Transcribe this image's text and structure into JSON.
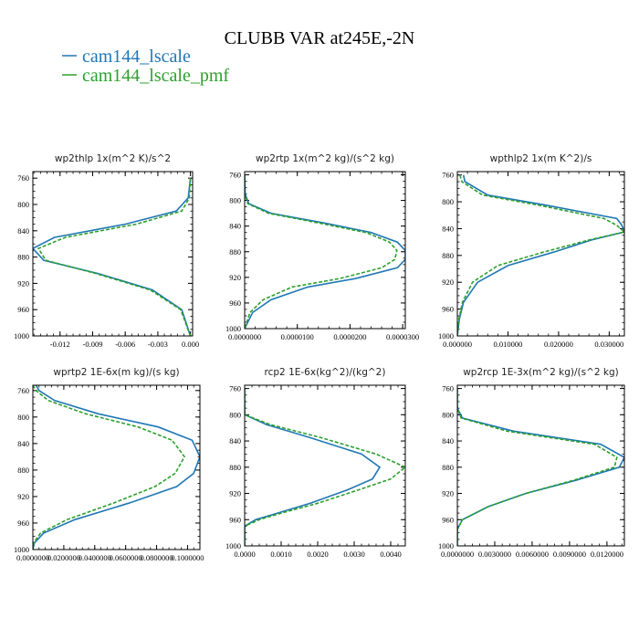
{
  "figure": {
    "title": "CLUBB VAR at245E,-2N",
    "legend": [
      {
        "label": "cam144_lscale",
        "color": "#1f77b4",
        "dash": "solid"
      },
      {
        "label": "cam144_lscale_pmf",
        "color": "#2ca02c",
        "dash": "dashed"
      }
    ]
  },
  "chart_data": [
    {
      "type": "line",
      "title": "wp2thlp   1x(m^2 K)/s^2",
      "xticks": [
        "-0.012",
        "-0.009",
        "-0.006",
        "-0.003",
        "0.000"
      ],
      "xtick_values": [
        -0.012,
        -0.009,
        -0.006,
        -0.003,
        0.0
      ],
      "xlim": [
        -0.0145,
        0.0002
      ],
      "ylim": [
        1000,
        750
      ],
      "yticks": [
        "760",
        "800",
        "840",
        "880",
        "920",
        "960",
        "1000"
      ],
      "ytick_values": [
        760,
        800,
        840,
        880,
        920,
        960,
        1000
      ],
      "series": [
        {
          "name": "cam144_lscale",
          "x": [
            0.0,
            -0.0002,
            -0.0013,
            -0.006,
            -0.0125,
            -0.0145,
            -0.0135,
            -0.0085,
            -0.0035,
            -0.0008,
            0.0
          ],
          "y": [
            760,
            790,
            810,
            830,
            850,
            867,
            885,
            905,
            930,
            960,
            1000
          ]
        },
        {
          "name": "cam144_lscale_pmf",
          "x": [
            0.0,
            -0.0001,
            -0.0008,
            -0.005,
            -0.0115,
            -0.014,
            -0.0133,
            -0.0087,
            -0.0037,
            -0.0009,
            0.0
          ],
          "y": [
            760,
            790,
            810,
            830,
            850,
            867,
            885,
            905,
            930,
            960,
            1000
          ]
        }
      ]
    },
    {
      "type": "line",
      "title": "wp2rtp   1x(m^2 kg)/(s^2 kg)",
      "xticks": [
        "0.0000000",
        "0.0000100",
        "0.0000200",
        "0.0000300"
      ],
      "xtick_values": [
        0.0,
        1e-05,
        2e-05,
        3e-05
      ],
      "xlim": [
        0.0,
        3.05e-05
      ],
      "ylim": [
        1000,
        755
      ],
      "yticks": [
        "760",
        "800",
        "840",
        "880",
        "920",
        "960",
        "1000"
      ],
      "ytick_values": [
        760,
        800,
        840,
        880,
        920,
        960,
        1000
      ],
      "series": [
        {
          "name": "cam144_lscale",
          "x": [
            0.0,
            1e-07,
            8e-07,
            5e-06,
            1.5e-05,
            2.4e-05,
            2.9e-05,
            3.05e-05,
            3.05e-05,
            2.9e-05,
            2.1e-05,
            1.2e-05,
            5e-06,
            1.5e-06,
            0.0
          ],
          "y": [
            760,
            790,
            805,
            820,
            835,
            850,
            865,
            878,
            892,
            905,
            922,
            935,
            955,
            975,
            1000
          ]
        },
        {
          "name": "cam144_lscale_pmf",
          "x": [
            0.0,
            0.0,
            6e-07,
            4.5e-06,
            1.4e-05,
            2.3e-05,
            2.75e-05,
            2.89e-05,
            2.85e-05,
            2.6e-05,
            1.8e-05,
            9e-06,
            3.5e-06,
            1e-06,
            0.0
          ],
          "y": [
            760,
            790,
            805,
            820,
            835,
            850,
            865,
            878,
            892,
            905,
            922,
            935,
            955,
            975,
            1000
          ]
        }
      ]
    },
    {
      "type": "line",
      "title": "wpthlp2   1x(m K^2)/s",
      "xticks": [
        "0.000000",
        "0.010000",
        "0.020000",
        "0.030000"
      ],
      "xtick_values": [
        0.0,
        0.01,
        0.02,
        0.03
      ],
      "xlim": [
        0.0,
        0.033
      ],
      "ylim": [
        1000,
        755
      ],
      "yticks": [
        "760",
        "800",
        "840",
        "880",
        "920",
        "960",
        "1000"
      ],
      "ytick_values": [
        760,
        800,
        840,
        880,
        920,
        960,
        1000
      ],
      "series": [
        {
          "name": "cam144_lscale",
          "x": [
            0.0012,
            0.0015,
            0.006,
            0.0175,
            0.0315,
            0.0325,
            0.033,
            0.0265,
            0.019,
            0.01,
            0.004,
            0.0012,
            0.0004,
            0.0
          ],
          "y": [
            760,
            770,
            790,
            805,
            825,
            835,
            845,
            857,
            875,
            895,
            920,
            950,
            975,
            1000
          ]
        },
        {
          "name": "cam144_lscale_pmf",
          "x": [
            0.0005,
            0.0009,
            0.005,
            0.016,
            0.029,
            0.0315,
            0.033,
            0.026,
            0.017,
            0.008,
            0.003,
            0.001,
            0.0003,
            0.0
          ],
          "y": [
            760,
            770,
            790,
            805,
            825,
            835,
            845,
            857,
            875,
            895,
            920,
            950,
            975,
            1000
          ]
        }
      ]
    },
    {
      "type": "line",
      "title": "wprtp2   1E-6x(m kg)/(s kg)",
      "xticks": [
        "0.0000000",
        "0.0200000",
        "0.0400000",
        "0.0600000",
        "0.0800000",
        "0.1000000"
      ],
      "xtick_values": [
        0.0,
        0.02,
        0.04,
        0.06,
        0.08,
        0.1
      ],
      "xlim": [
        0.0,
        0.108
      ],
      "ylim": [
        1000,
        752
      ],
      "yticks": [
        "760",
        "800",
        "840",
        "880",
        "920",
        "960",
        "1000"
      ],
      "ytick_values": [
        760,
        800,
        840,
        880,
        920,
        960,
        1000
      ],
      "series": [
        {
          "name": "cam144_lscale",
          "x": [
            0.002,
            0.004,
            0.014,
            0.042,
            0.081,
            0.103,
            0.108,
            0.104,
            0.093,
            0.062,
            0.027,
            0.007,
            0.001,
            0.0
          ],
          "y": [
            752,
            760,
            775,
            795,
            815,
            835,
            860,
            885,
            905,
            930,
            955,
            975,
            990,
            1000
          ]
        },
        {
          "name": "cam144_lscale_pmf",
          "x": [
            0.0,
            0.002,
            0.01,
            0.034,
            0.068,
            0.09,
            0.098,
            0.092,
            0.079,
            0.052,
            0.022,
            0.005,
            0.0005,
            0.0
          ],
          "y": [
            752,
            760,
            775,
            795,
            815,
            835,
            860,
            885,
            905,
            930,
            955,
            975,
            990,
            1000
          ]
        }
      ]
    },
    {
      "type": "line",
      "title": "rcp2   1E-6x(kg^2)/(kg^2)",
      "xticks": [
        "0.0000",
        "0.0010",
        "0.0020",
        "0.0030",
        "0.0040"
      ],
      "xtick_values": [
        0.0,
        0.001,
        0.002,
        0.003,
        0.004
      ],
      "xlim": [
        0.0,
        0.0044
      ],
      "ylim": [
        1000,
        755
      ],
      "yticks": [
        "760",
        "800",
        "840",
        "880",
        "920",
        "960",
        "1000"
      ],
      "ytick_values": [
        760,
        800,
        840,
        880,
        920,
        960,
        1000
      ],
      "series": [
        {
          "name": "cam144_lscale",
          "x": [
            0.0,
            0.0,
            0.0,
            0.0006,
            0.0018,
            0.0032,
            0.0037,
            0.0035,
            0.0028,
            0.0018,
            0.0009,
            0.0003,
            0.0,
            0.0
          ],
          "y": [
            760,
            790,
            800,
            815,
            835,
            860,
            880,
            898,
            915,
            935,
            950,
            960,
            970,
            1000
          ]
        },
        {
          "name": "cam144_lscale_pmf",
          "x": [
            0.0,
            0.0,
            0.0,
            0.0007,
            0.0021,
            0.0036,
            0.0044,
            0.004,
            0.0031,
            0.002,
            0.001,
            0.0004,
            0.0,
            0.0
          ],
          "y": [
            760,
            790,
            800,
            815,
            835,
            860,
            880,
            898,
            915,
            935,
            950,
            960,
            970,
            1000
          ]
        }
      ]
    },
    {
      "type": "line",
      "title": "wp2rcp   1E-3x(m^2 kg)/(s^2 kg)",
      "xticks": [
        "0.0000000",
        "0.0030000",
        "0.0060000",
        "0.0090000",
        "0.0120000"
      ],
      "xtick_values": [
        0.0,
        0.003,
        0.006,
        0.009,
        0.012
      ],
      "xlim": [
        0.0,
        0.0134
      ],
      "ylim": [
        1000,
        755
      ],
      "yticks": [
        "760",
        "800",
        "840",
        "880",
        "920",
        "960",
        "1000"
      ],
      "ytick_values": [
        760,
        800,
        840,
        880,
        920,
        960,
        1000
      ],
      "series": [
        {
          "name": "cam144_lscale",
          "x": [
            0.0,
            0.0,
            0.0004,
            0.0045,
            0.0115,
            0.0134,
            0.013,
            0.0095,
            0.0055,
            0.0025,
            0.0004,
            0.0,
            0.0
          ],
          "y": [
            760,
            790,
            805,
            825,
            845,
            865,
            880,
            900,
            920,
            940,
            960,
            975,
            1000
          ]
        },
        {
          "name": "cam144_lscale_pmf",
          "x": [
            0.0,
            0.0,
            0.0003,
            0.004,
            0.011,
            0.0128,
            0.0126,
            0.0093,
            0.0055,
            0.0025,
            0.0004,
            0.0,
            0.0
          ],
          "y": [
            760,
            790,
            805,
            825,
            845,
            865,
            880,
            900,
            920,
            940,
            960,
            975,
            1000
          ]
        }
      ]
    }
  ]
}
